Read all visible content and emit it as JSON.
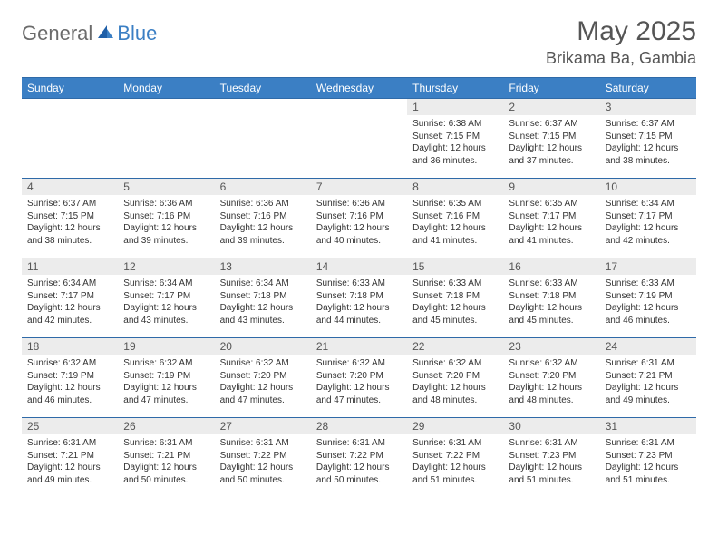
{
  "brand": {
    "part1": "General",
    "part2": "Blue"
  },
  "title": "May 2025",
  "location": "Brikama Ba, Gambia",
  "colors": {
    "header_bg": "#3b7fc4",
    "header_text": "#ffffff",
    "row_border": "#2f6aa8",
    "daynum_bg": "#ececec",
    "body_text": "#333333",
    "title_text": "#555555"
  },
  "weekdays": [
    "Sunday",
    "Monday",
    "Tuesday",
    "Wednesday",
    "Thursday",
    "Friday",
    "Saturday"
  ],
  "weeks": [
    [
      {
        "n": "",
        "sr": "",
        "ss": "",
        "dl": ""
      },
      {
        "n": "",
        "sr": "",
        "ss": "",
        "dl": ""
      },
      {
        "n": "",
        "sr": "",
        "ss": "",
        "dl": ""
      },
      {
        "n": "",
        "sr": "",
        "ss": "",
        "dl": ""
      },
      {
        "n": "1",
        "sr": "Sunrise: 6:38 AM",
        "ss": "Sunset: 7:15 PM",
        "dl": "Daylight: 12 hours and 36 minutes."
      },
      {
        "n": "2",
        "sr": "Sunrise: 6:37 AM",
        "ss": "Sunset: 7:15 PM",
        "dl": "Daylight: 12 hours and 37 minutes."
      },
      {
        "n": "3",
        "sr": "Sunrise: 6:37 AM",
        "ss": "Sunset: 7:15 PM",
        "dl": "Daylight: 12 hours and 38 minutes."
      }
    ],
    [
      {
        "n": "4",
        "sr": "Sunrise: 6:37 AM",
        "ss": "Sunset: 7:15 PM",
        "dl": "Daylight: 12 hours and 38 minutes."
      },
      {
        "n": "5",
        "sr": "Sunrise: 6:36 AM",
        "ss": "Sunset: 7:16 PM",
        "dl": "Daylight: 12 hours and 39 minutes."
      },
      {
        "n": "6",
        "sr": "Sunrise: 6:36 AM",
        "ss": "Sunset: 7:16 PM",
        "dl": "Daylight: 12 hours and 39 minutes."
      },
      {
        "n": "7",
        "sr": "Sunrise: 6:36 AM",
        "ss": "Sunset: 7:16 PM",
        "dl": "Daylight: 12 hours and 40 minutes."
      },
      {
        "n": "8",
        "sr": "Sunrise: 6:35 AM",
        "ss": "Sunset: 7:16 PM",
        "dl": "Daylight: 12 hours and 41 minutes."
      },
      {
        "n": "9",
        "sr": "Sunrise: 6:35 AM",
        "ss": "Sunset: 7:17 PM",
        "dl": "Daylight: 12 hours and 41 minutes."
      },
      {
        "n": "10",
        "sr": "Sunrise: 6:34 AM",
        "ss": "Sunset: 7:17 PM",
        "dl": "Daylight: 12 hours and 42 minutes."
      }
    ],
    [
      {
        "n": "11",
        "sr": "Sunrise: 6:34 AM",
        "ss": "Sunset: 7:17 PM",
        "dl": "Daylight: 12 hours and 42 minutes."
      },
      {
        "n": "12",
        "sr": "Sunrise: 6:34 AM",
        "ss": "Sunset: 7:17 PM",
        "dl": "Daylight: 12 hours and 43 minutes."
      },
      {
        "n": "13",
        "sr": "Sunrise: 6:34 AM",
        "ss": "Sunset: 7:18 PM",
        "dl": "Daylight: 12 hours and 43 minutes."
      },
      {
        "n": "14",
        "sr": "Sunrise: 6:33 AM",
        "ss": "Sunset: 7:18 PM",
        "dl": "Daylight: 12 hours and 44 minutes."
      },
      {
        "n": "15",
        "sr": "Sunrise: 6:33 AM",
        "ss": "Sunset: 7:18 PM",
        "dl": "Daylight: 12 hours and 45 minutes."
      },
      {
        "n": "16",
        "sr": "Sunrise: 6:33 AM",
        "ss": "Sunset: 7:18 PM",
        "dl": "Daylight: 12 hours and 45 minutes."
      },
      {
        "n": "17",
        "sr": "Sunrise: 6:33 AM",
        "ss": "Sunset: 7:19 PM",
        "dl": "Daylight: 12 hours and 46 minutes."
      }
    ],
    [
      {
        "n": "18",
        "sr": "Sunrise: 6:32 AM",
        "ss": "Sunset: 7:19 PM",
        "dl": "Daylight: 12 hours and 46 minutes."
      },
      {
        "n": "19",
        "sr": "Sunrise: 6:32 AM",
        "ss": "Sunset: 7:19 PM",
        "dl": "Daylight: 12 hours and 47 minutes."
      },
      {
        "n": "20",
        "sr": "Sunrise: 6:32 AM",
        "ss": "Sunset: 7:20 PM",
        "dl": "Daylight: 12 hours and 47 minutes."
      },
      {
        "n": "21",
        "sr": "Sunrise: 6:32 AM",
        "ss": "Sunset: 7:20 PM",
        "dl": "Daylight: 12 hours and 47 minutes."
      },
      {
        "n": "22",
        "sr": "Sunrise: 6:32 AM",
        "ss": "Sunset: 7:20 PM",
        "dl": "Daylight: 12 hours and 48 minutes."
      },
      {
        "n": "23",
        "sr": "Sunrise: 6:32 AM",
        "ss": "Sunset: 7:20 PM",
        "dl": "Daylight: 12 hours and 48 minutes."
      },
      {
        "n": "24",
        "sr": "Sunrise: 6:31 AM",
        "ss": "Sunset: 7:21 PM",
        "dl": "Daylight: 12 hours and 49 minutes."
      }
    ],
    [
      {
        "n": "25",
        "sr": "Sunrise: 6:31 AM",
        "ss": "Sunset: 7:21 PM",
        "dl": "Daylight: 12 hours and 49 minutes."
      },
      {
        "n": "26",
        "sr": "Sunrise: 6:31 AM",
        "ss": "Sunset: 7:21 PM",
        "dl": "Daylight: 12 hours and 50 minutes."
      },
      {
        "n": "27",
        "sr": "Sunrise: 6:31 AM",
        "ss": "Sunset: 7:22 PM",
        "dl": "Daylight: 12 hours and 50 minutes."
      },
      {
        "n": "28",
        "sr": "Sunrise: 6:31 AM",
        "ss": "Sunset: 7:22 PM",
        "dl": "Daylight: 12 hours and 50 minutes."
      },
      {
        "n": "29",
        "sr": "Sunrise: 6:31 AM",
        "ss": "Sunset: 7:22 PM",
        "dl": "Daylight: 12 hours and 51 minutes."
      },
      {
        "n": "30",
        "sr": "Sunrise: 6:31 AM",
        "ss": "Sunset: 7:23 PM",
        "dl": "Daylight: 12 hours and 51 minutes."
      },
      {
        "n": "31",
        "sr": "Sunrise: 6:31 AM",
        "ss": "Sunset: 7:23 PM",
        "dl": "Daylight: 12 hours and 51 minutes."
      }
    ]
  ]
}
